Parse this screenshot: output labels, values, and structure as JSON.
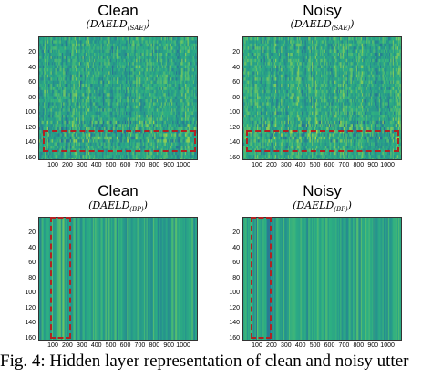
{
  "panels": [
    {
      "title": "Clean",
      "subtitle_main": "DAELD",
      "subtitle_sub": "(SAE)",
      "kind": "sae",
      "highlight": "rows",
      "seed": 11
    },
    {
      "title": "Noisy",
      "subtitle_main": "DAELD",
      "subtitle_sub": "(SAE)",
      "kind": "sae",
      "highlight": "rows",
      "seed": 29
    },
    {
      "title": "Clean",
      "subtitle_main": "DAELD",
      "subtitle_sub": "(BP)",
      "kind": "bp",
      "highlight": "cols",
      "seed": 47
    },
    {
      "title": "Noisy",
      "subtitle_main": "DAELD",
      "subtitle_sub": "(BP)",
      "kind": "bp",
      "highlight": "cols",
      "seed": 83
    }
  ],
  "y_ticks": [
    "20",
    "40",
    "60",
    "80",
    "100",
    "120",
    "140",
    "160"
  ],
  "x_ticks": [
    "100",
    "200",
    "300",
    "400",
    "500",
    "600",
    "700",
    "800",
    "900",
    "1000"
  ],
  "colors": {
    "base": "#2fa89a",
    "highlight_box": "#b22222"
  },
  "caption": "Fig. 4: Hidden layer representation of clean and noisy utter"
}
